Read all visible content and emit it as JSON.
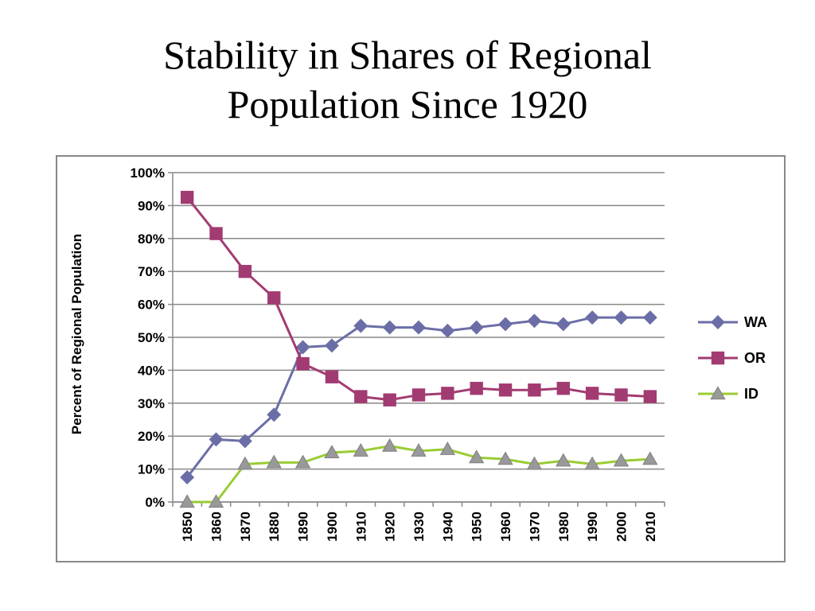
{
  "slide": {
    "title_line1": "Stability in Shares of Regional",
    "title_line2": "Population Since 1920"
  },
  "chart_data": {
    "type": "line",
    "title": "Stability in Shares of Regional Population Since 1920",
    "xlabel": "",
    "ylabel": "Percent of Regional Population",
    "ylim": [
      0,
      100
    ],
    "y_ticks": [
      "0%",
      "10%",
      "20%",
      "30%",
      "40%",
      "50%",
      "60%",
      "70%",
      "80%",
      "90%",
      "100%"
    ],
    "grid": true,
    "legend_position": "right",
    "categories": [
      "1850",
      "1860",
      "1870",
      "1880",
      "1890",
      "1900",
      "1910",
      "1920",
      "1930",
      "1940",
      "1950",
      "1960",
      "1970",
      "1980",
      "1990",
      "2000",
      "2010"
    ],
    "series": [
      {
        "name": "WA",
        "marker": "diamond",
        "line_color": "#6b6ea6",
        "marker_color": "#6b6ea6",
        "values": [
          7.5,
          19,
          18.5,
          26.5,
          47,
          47.5,
          53.5,
          53,
          53,
          52,
          53,
          54,
          55,
          54,
          56,
          56,
          56
        ]
      },
      {
        "name": "OR",
        "marker": "square",
        "line_color": "#a23b72",
        "marker_color": "#a23b72",
        "values": [
          92.5,
          81.5,
          70,
          62,
          42,
          38,
          32,
          31,
          32.5,
          33,
          34.5,
          34,
          34,
          34.5,
          33,
          32.5,
          32
        ]
      },
      {
        "name": "ID",
        "marker": "triangle",
        "line_color": "#99cc33",
        "marker_color": "#999999",
        "values": [
          0,
          0,
          11.5,
          12,
          12,
          15,
          15.5,
          17,
          15.5,
          16,
          13.5,
          13,
          11.5,
          12.5,
          11.5,
          12.5,
          13
        ]
      }
    ]
  }
}
